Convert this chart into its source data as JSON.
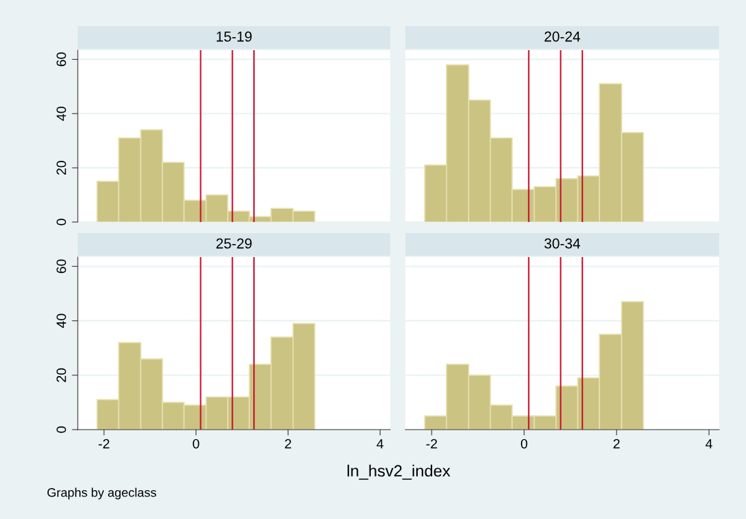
{
  "chart_data": [
    {
      "type": "histogram",
      "title": "15-19",
      "bins": [
        -2.15,
        -1.68,
        -1.2,
        -0.73,
        -0.26,
        0.22,
        0.69,
        1.16,
        1.63,
        2.11,
        2.58
      ],
      "values": [
        15,
        31,
        34,
        22,
        8,
        10,
        4,
        2,
        5,
        4
      ],
      "color": "#cbc382",
      "xlim": [
        -2.57,
        4.22
      ],
      "ylim": [
        0,
        63.4
      ],
      "xticks": [
        -2,
        0,
        2,
        4
      ],
      "yticks": [
        0,
        20,
        40,
        60
      ],
      "grid": "y",
      "tick_labels": "y",
      "ref_lines": [
        {
          "axis": "x",
          "value": 0.1,
          "color": "#c8102e"
        },
        {
          "axis": "x",
          "value": 0.79,
          "color": "#c8102e"
        },
        {
          "axis": "x",
          "value": 1.26,
          "color": "#c8102e"
        }
      ]
    },
    {
      "type": "histogram",
      "title": "20-24",
      "bins": [
        -2.15,
        -1.68,
        -1.2,
        -0.73,
        -0.26,
        0.22,
        0.69,
        1.16,
        1.63,
        2.11,
        2.58
      ],
      "values": [
        21,
        58,
        45,
        31,
        12,
        13,
        16,
        17,
        51,
        33
      ],
      "color": "#cbc382",
      "xlim": [
        -2.57,
        4.22
      ],
      "ylim": [
        0,
        63.4
      ],
      "xticks": [
        -2,
        0,
        2,
        4
      ],
      "yticks": [
        0,
        20,
        40,
        60
      ],
      "grid": "y",
      "tick_labels": false,
      "ref_lines": [
        {
          "axis": "x",
          "value": 0.1,
          "color": "#c8102e"
        },
        {
          "axis": "x",
          "value": 0.79,
          "color": "#c8102e"
        },
        {
          "axis": "x",
          "value": 1.26,
          "color": "#c8102e"
        }
      ]
    },
    {
      "type": "histogram",
      "title": "25-29",
      "xlabel": "ln_hsv2_index",
      "annotations": [
        "Graphs by ageclass"
      ],
      "bins": [
        -2.15,
        -1.68,
        -1.2,
        -0.73,
        -0.26,
        0.22,
        0.69,
        1.16,
        1.63,
        2.11,
        2.58
      ],
      "values": [
        11,
        32,
        26,
        10,
        9,
        12,
        12,
        24,
        34,
        39
      ],
      "color": "#cbc382",
      "xlim": [
        -2.57,
        4.22
      ],
      "ylim": [
        0,
        63.4
      ],
      "xticks": [
        -2,
        0,
        2,
        4
      ],
      "yticks": [
        0,
        20,
        40,
        60
      ],
      "grid": "y",
      "ref_lines": [
        {
          "axis": "x",
          "value": 0.1,
          "color": "#c8102e"
        },
        {
          "axis": "x",
          "value": 0.79,
          "color": "#c8102e"
        },
        {
          "axis": "x",
          "value": 1.26,
          "color": "#c8102e"
        }
      ]
    },
    {
      "type": "histogram",
      "title": "30-34",
      "bins": [
        -2.15,
        -1.68,
        -1.2,
        -0.73,
        -0.26,
        0.22,
        0.69,
        1.16,
        1.63,
        2.11,
        2.58
      ],
      "values": [
        5,
        24,
        20,
        9,
        5,
        5,
        16,
        19,
        35,
        47
      ],
      "color": "#cbc382",
      "xlim": [
        -2.57,
        4.22
      ],
      "ylim": [
        0,
        63.4
      ],
      "xticks": [
        -2,
        0,
        2,
        4
      ],
      "yticks": [
        0,
        20,
        40,
        60
      ],
      "grid": "y",
      "tick_labels": "x",
      "ref_lines": [
        {
          "axis": "x",
          "value": 0.1,
          "color": "#c8102e"
        },
        {
          "axis": "x",
          "value": 0.79,
          "color": "#c8102e"
        },
        {
          "axis": "x",
          "value": 1.26,
          "color": "#c8102e"
        }
      ]
    }
  ]
}
